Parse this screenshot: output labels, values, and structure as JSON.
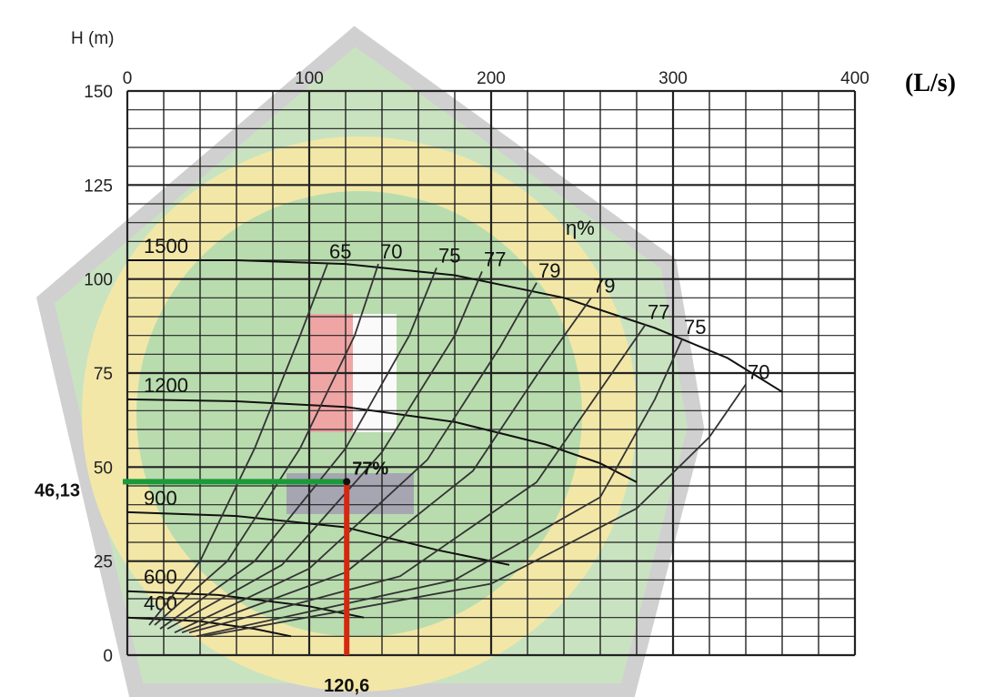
{
  "chart_data": {
    "type": "line",
    "ylabel": "H (m)",
    "xunit": "(L/s)",
    "xlim": [
      0,
      400
    ],
    "ylim": [
      0,
      150
    ],
    "xticks": [
      0,
      100,
      200,
      300,
      400
    ],
    "yticks": [
      0,
      25,
      50,
      75,
      100,
      125,
      150
    ],
    "grid": true,
    "efficiency_symbol": "η%",
    "speed_curves": [
      {
        "name": "1500",
        "x": [
          0,
          60,
          120,
          180,
          240,
          290,
          330,
          360
        ],
        "y": [
          105,
          105,
          104,
          101,
          95,
          87,
          79,
          70
        ]
      },
      {
        "name": "1200",
        "x": [
          0,
          60,
          120,
          180,
          230,
          260,
          280
        ],
        "y": [
          68,
          67.5,
          66,
          62,
          56,
          51,
          46
        ]
      },
      {
        "name": "900",
        "x": [
          0,
          60,
          120,
          170,
          210
        ],
        "y": [
          38,
          37,
          34,
          28,
          24
        ]
      },
      {
        "name": "600",
        "x": [
          0,
          50,
          100,
          130
        ],
        "y": [
          17,
          16,
          13,
          10
        ]
      },
      {
        "name": "400",
        "x": [
          0,
          40,
          70,
          90
        ],
        "y": [
          10,
          9,
          7,
          5
        ]
      }
    ],
    "efficiency_curves": [
      {
        "name": "65",
        "x": [
          12,
          40,
          70,
          95,
          110
        ],
        "y": [
          8,
          25,
          55,
          85,
          104
        ]
      },
      {
        "name": "70",
        "x": [
          15,
          55,
          95,
          125,
          138
        ],
        "y": [
          8,
          25,
          55,
          85,
          104
        ]
      },
      {
        "name": "75",
        "x": [
          18,
          70,
          120,
          155,
          170
        ],
        "y": [
          7,
          25,
          55,
          85,
          103
        ]
      },
      {
        "name": "77",
        "x": [
          22,
          85,
          140,
          180,
          195
        ],
        "y": [
          7,
          24,
          54,
          85,
          102
        ]
      },
      {
        "name": "79",
        "x": [
          26,
          100,
          165,
          205,
          225
        ],
        "y": [
          6,
          23,
          52,
          82,
          99
        ]
      },
      {
        "name": "79",
        "x": [
          30,
          120,
          190,
          230,
          255
        ],
        "y": [
          6,
          22,
          49,
          78,
          95
        ]
      },
      {
        "name": "77",
        "x": [
          34,
          150,
          225,
          265,
          285
        ],
        "y": [
          6,
          21,
          46,
          74,
          88
        ]
      },
      {
        "name": "75",
        "x": [
          38,
          180,
          260,
          290,
          305
        ],
        "y": [
          5,
          20,
          42,
          68,
          84
        ]
      },
      {
        "name": "70",
        "x": [
          42,
          200,
          280,
          320,
          340
        ],
        "y": [
          5,
          19,
          39,
          58,
          72
        ]
      }
    ],
    "operating_point": {
      "x": 120.6,
      "y": 46.13,
      "efficiency": "77%",
      "x_label": "120,6",
      "y_label": "46,13"
    }
  }
}
